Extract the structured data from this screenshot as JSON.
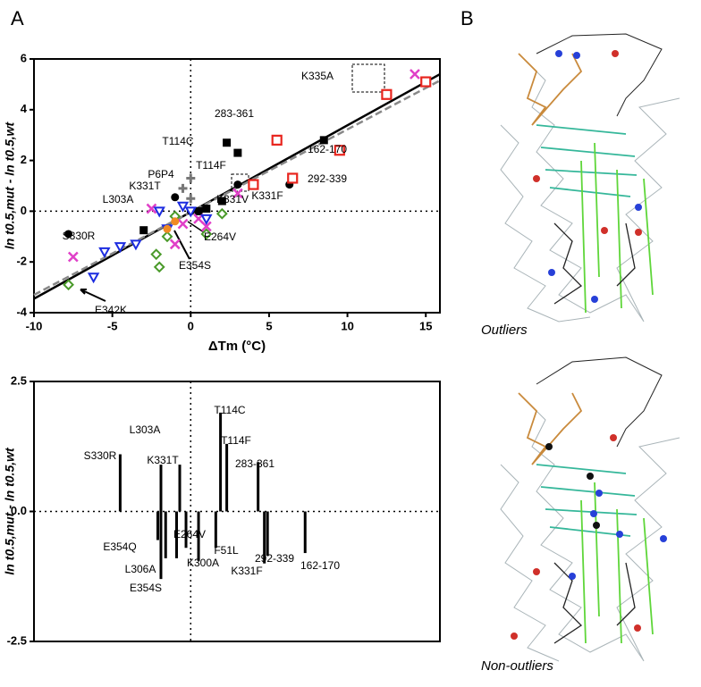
{
  "panel_labels": [
    "A",
    "B"
  ],
  "structure_labels": [
    "Outliers",
    "Non-outliers"
  ],
  "chart_data": [
    {
      "type": "scatter",
      "x_label": "ΔTm (°C)",
      "y_label": "ln t0.5,mut - ln t0.5,wt",
      "xlim": [
        -10,
        15.9
      ],
      "ylim": [
        -4,
        6
      ],
      "xticks": [
        -10,
        -5,
        0,
        5,
        10,
        15
      ],
      "yticks": [
        -4,
        -2,
        0,
        2,
        4,
        6
      ],
      "series": [
        {
          "marker": "square-filled",
          "color": "#000000",
          "x": [
            2.3,
            3,
            8.5,
            -3,
            1,
            2,
            0.5
          ],
          "values": [
            2.7,
            2.3,
            2.8,
            -0.75,
            0.1,
            0.4,
            0
          ]
        },
        {
          "marker": "circle-filled",
          "color": "#000000",
          "x": [
            -7.8,
            -1,
            3,
            6.3,
            0
          ],
          "values": [
            -0.9,
            0.55,
            1.05,
            1.05,
            0
          ]
        },
        {
          "marker": "square-open",
          "color": "#e8251e",
          "x": [
            5.5,
            9.5,
            6.5,
            4,
            12.5,
            15
          ],
          "values": [
            2.8,
            2.4,
            1.3,
            1.05,
            4.6,
            5.1
          ]
        },
        {
          "marker": "x",
          "color": "#e040c8",
          "x": [
            -7.5,
            -2.5,
            -1,
            14.3,
            3,
            0.5,
            1,
            -0.5
          ],
          "values": [
            -1.8,
            0.1,
            -1.3,
            5.4,
            0.7,
            -0.3,
            -0.6,
            -0.5
          ]
        },
        {
          "marker": "triangle-open",
          "color": "#1c2ce0",
          "x": [
            -5.5,
            -4.5,
            -3.5,
            -1.5,
            -2,
            -0.5,
            0,
            -6.2,
            1
          ],
          "values": [
            -1.6,
            -1.4,
            -1.3,
            -0.7,
            0,
            0.2,
            0,
            -2.6,
            -0.3
          ]
        },
        {
          "marker": "diamond-open",
          "color": "#4a9a2a",
          "x": [
            -7.8,
            -2.2,
            -1.5,
            -1,
            1,
            -2,
            2
          ],
          "values": [
            -2.9,
            -1.7,
            -1,
            -0.2,
            -0.9,
            -2.2,
            -0.1
          ]
        },
        {
          "marker": "plus",
          "color": "#777777",
          "x": [
            0,
            -0.5,
            0
          ],
          "values": [
            1.3,
            0.9,
            0.5
          ]
        },
        {
          "marker": "circle-filled",
          "color": "#f08a24",
          "x": [
            -1.5,
            -1
          ],
          "values": [
            -0.7,
            -0.4
          ]
        }
      ],
      "lines": [
        {
          "color": "#000000",
          "dash": false,
          "x": [
            -10,
            15.9
          ],
          "y": [
            -3.45,
            5.4
          ]
        },
        {
          "color": "#888888",
          "dash": true,
          "x": [
            -10,
            15.9
          ],
          "y": [
            -3.3,
            5.15
          ]
        }
      ],
      "annotations": [
        "K335A",
        "283-361",
        "T114C",
        "162-170",
        "T114F",
        "P6P4",
        "292-339",
        "K331T",
        "L303A",
        "K331V",
        "K331F",
        "S330R",
        "E264V",
        "E354S",
        "E342K"
      ]
    },
    {
      "type": "bar",
      "y_label": "ln t0.5,mut - ln t0.5,wt",
      "xlim": [
        -10,
        15.9
      ],
      "ylim": [
        -2.5,
        2.5
      ],
      "yticks": [
        2.5,
        {
          "value": 0,
          "label": "0.0"
        },
        -2.5
      ],
      "categories": [
        "S330R",
        "L303A",
        "K331T",
        "T114C",
        "T114F",
        "283-361",
        "E354Q",
        "E354S",
        null,
        "L306A",
        "E264V",
        "K300A",
        "F51L",
        "K331F",
        "292-339",
        "162-170"
      ],
      "x": [
        -4.5,
        -1.9,
        -0.7,
        1.9,
        2.3,
        4.3,
        -2.1,
        -1.9,
        -1.6,
        -0.9,
        -0.3,
        0.5,
        1.6,
        4.7,
        4.9,
        7.3
      ],
      "values": [
        1.1,
        0.9,
        0.9,
        1.9,
        1.3,
        0.95,
        -0.55,
        -1.3,
        -0.9,
        -0.9,
        -0.7,
        -0.95,
        -0.7,
        -1.0,
        -0.85,
        -0.8
      ],
      "color": "#000000"
    }
  ]
}
